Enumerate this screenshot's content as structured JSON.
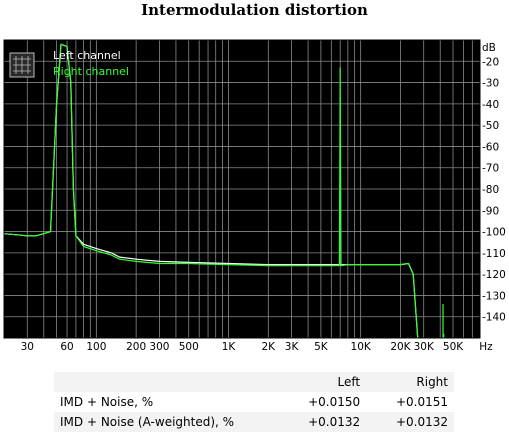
{
  "page": {
    "title": "Intermodulation distortion"
  },
  "chart_data": {
    "type": "line",
    "title": "Intermodulation distortion",
    "xscale": "log",
    "xlim": [
      20,
      80000
    ],
    "ylim": [
      -150,
      -10
    ],
    "x_unit": "Hz",
    "y_unit": "dB",
    "xticks": [
      {
        "v": 30,
        "label": "30"
      },
      {
        "v": 60,
        "label": "60"
      },
      {
        "v": 100,
        "label": "100"
      },
      {
        "v": 200,
        "label": "200"
      },
      {
        "v": 300,
        "label": "300"
      },
      {
        "v": 500,
        "label": "500"
      },
      {
        "v": 1000,
        "label": "1K"
      },
      {
        "v": 2000,
        "label": "2K"
      },
      {
        "v": 3000,
        "label": "3K"
      },
      {
        "v": 5000,
        "label": "5K"
      },
      {
        "v": 10000,
        "label": "10K"
      },
      {
        "v": 20000,
        "label": "20K"
      },
      {
        "v": 30000,
        "label": "30K"
      },
      {
        "v": 50000,
        "label": "50K"
      }
    ],
    "yticks": [
      {
        "v": -20,
        "label": "-20"
      },
      {
        "v": -30,
        "label": "-30"
      },
      {
        "v": -40,
        "label": "-40"
      },
      {
        "v": -50,
        "label": "-50"
      },
      {
        "v": -60,
        "label": "-60"
      },
      {
        "v": -70,
        "label": "-70"
      },
      {
        "v": -80,
        "label": "-80"
      },
      {
        "v": -90,
        "label": "-90"
      },
      {
        "v": -100,
        "label": "-100"
      },
      {
        "v": -110,
        "label": "-110"
      },
      {
        "v": -120,
        "label": "-120"
      },
      {
        "v": -130,
        "label": "-130"
      },
      {
        "v": -140,
        "label": "-140"
      }
    ],
    "grid": true,
    "legend_position": "top-left",
    "background": "#000000",
    "grid_color": "#8a8a8a",
    "series": [
      {
        "name": "Left channel",
        "color": "#ffffff",
        "points": [
          [
            20,
            -101
          ],
          [
            25,
            -101.5
          ],
          [
            30,
            -102
          ],
          [
            35,
            -102
          ],
          [
            40,
            -101
          ],
          [
            45,
            -100
          ],
          [
            50,
            -40
          ],
          [
            54,
            -12
          ],
          [
            60,
            -13
          ],
          [
            64,
            -30
          ],
          [
            67,
            -80
          ],
          [
            70,
            -102
          ],
          [
            80,
            -106
          ],
          [
            100,
            -108
          ],
          [
            130,
            -110
          ],
          [
            150,
            -112
          ],
          [
            200,
            -113
          ],
          [
            300,
            -114
          ],
          [
            500,
            -114.5
          ],
          [
            1000,
            -115
          ],
          [
            2000,
            -115.5
          ],
          [
            3000,
            -115.5
          ],
          [
            5000,
            -115.5
          ],
          [
            7000,
            -115.5
          ],
          [
            10000,
            -115.5
          ],
          [
            15000,
            -115.5
          ],
          [
            20000,
            -115.5
          ],
          [
            23000,
            -115
          ],
          [
            25000,
            -120
          ],
          [
            27000,
            -150
          ]
        ]
      },
      {
        "name": "Right channel",
        "color": "#33ff33",
        "points": [
          [
            20,
            -101
          ],
          [
            25,
            -101.5
          ],
          [
            30,
            -102
          ],
          [
            35,
            -102
          ],
          [
            40,
            -101
          ],
          [
            45,
            -100
          ],
          [
            50,
            -40
          ],
          [
            54,
            -12
          ],
          [
            60,
            -13
          ],
          [
            64,
            -30
          ],
          [
            67,
            -80
          ],
          [
            70,
            -102
          ],
          [
            80,
            -107
          ],
          [
            100,
            -109
          ],
          [
            130,
            -111
          ],
          [
            150,
            -113
          ],
          [
            200,
            -114
          ],
          [
            300,
            -115
          ],
          [
            500,
            -115
          ],
          [
            1000,
            -115.5
          ],
          [
            2000,
            -116
          ],
          [
            3000,
            -116
          ],
          [
            5000,
            -116
          ],
          [
            6700,
            -116
          ],
          [
            6900,
            -116
          ],
          [
            7000,
            -23
          ],
          [
            7100,
            -116
          ],
          [
            8000,
            -115.5
          ],
          [
            10000,
            -115.5
          ],
          [
            15000,
            -115.5
          ],
          [
            20000,
            -115.5
          ],
          [
            23000,
            -115
          ],
          [
            25000,
            -120
          ],
          [
            27000,
            -150
          ]
        ]
      }
    ],
    "spikes": [
      {
        "x": 42000,
        "to": -134,
        "color": "#33ff33"
      },
      {
        "x": 42500,
        "to": -148,
        "color": "#33ff33"
      }
    ]
  },
  "table": {
    "columns": [
      "",
      "Left",
      "Right"
    ],
    "rows": [
      {
        "label": "IMD + Noise, %",
        "left": "+0.0150",
        "right": "+0.0151"
      },
      {
        "label": "IMD + Noise (A-weighted), %",
        "left": "+0.0132",
        "right": "+0.0132"
      }
    ]
  }
}
